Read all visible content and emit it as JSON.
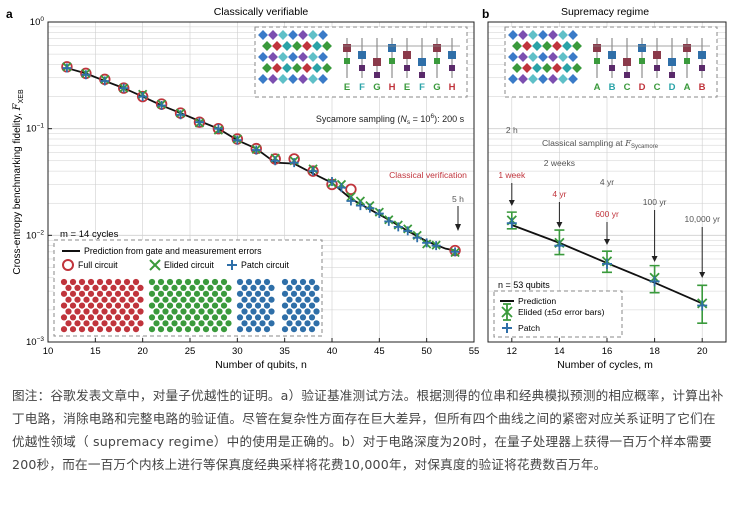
{
  "chart_data": [
    {
      "panel_label": "a",
      "type": "scatter",
      "title": "Classically verifiable",
      "xlabel": "Number of qubits, n",
      "ylabel": "Cross-entropy benchmarking fidelity, F_XEB",
      "ylabel_main": "Cross-entropy benchmarking fidelity, ",
      "ylabel_symbol": "F",
      "ylabel_sub": "XEB",
      "xlim": [
        10,
        55
      ],
      "ylim": [
        0.001,
        1
      ],
      "yscale": "log",
      "xticks": [
        10,
        15,
        20,
        25,
        30,
        35,
        40,
        45,
        50,
        55
      ],
      "yticks": [
        {
          "base": "10",
          "exp": "0",
          "value": 1
        },
        {
          "base": "10",
          "exp": "−1",
          "value": 0.1
        },
        {
          "base": "10",
          "exp": "−2",
          "value": 0.01
        },
        {
          "base": "10",
          "exp": "−3",
          "value": 0.001
        }
      ],
      "grid": true,
      "legend_location": "bottom-left",
      "cycles_label": "m = 14 cycles",
      "prediction": {
        "name": "Prediction from gate and measurement errors",
        "x": [
          12,
          14,
          16,
          18,
          20,
          22,
          24,
          26,
          28,
          30,
          32,
          34,
          36,
          38,
          40,
          42,
          44,
          46,
          48,
          50,
          52,
          53
        ],
        "y": [
          0.37,
          0.33,
          0.28,
          0.24,
          0.2,
          0.165,
          0.14,
          0.118,
          0.1,
          0.078,
          0.065,
          0.048,
          0.047,
          0.038,
          0.031,
          0.022,
          0.0175,
          0.014,
          0.011,
          0.0088,
          0.0075,
          0.0072
        ]
      },
      "series": [
        {
          "name": "Full circuit",
          "marker": "circle",
          "color": "#c0343c",
          "x": [
            12,
            14,
            16,
            18,
            20,
            22,
            24,
            26,
            28,
            30,
            32,
            34,
            36,
            38,
            40,
            42,
            53
          ],
          "y": [
            0.38,
            0.33,
            0.29,
            0.24,
            0.2,
            0.17,
            0.14,
            0.115,
            0.1,
            0.08,
            0.065,
            0.052,
            0.052,
            0.04,
            0.03,
            0.027,
            0.0072
          ]
        },
        {
          "name": "Elided circuit",
          "marker": "x",
          "color": "#3a9a3c",
          "x": [
            12,
            14,
            16,
            18,
            20,
            22,
            24,
            26,
            28,
            30,
            32,
            34,
            36,
            38,
            40,
            41,
            42,
            43,
            44,
            45,
            46,
            47,
            48,
            49,
            50,
            51,
            53
          ],
          "y": [
            0.38,
            0.33,
            0.29,
            0.24,
            0.21,
            0.17,
            0.14,
            0.113,
            0.097,
            0.08,
            0.064,
            0.053,
            0.05,
            0.042,
            0.031,
            0.03,
            0.023,
            0.021,
            0.019,
            0.0165,
            0.014,
            0.0125,
            0.0115,
            0.01,
            0.0083,
            0.0081,
            0.0069
          ]
        },
        {
          "name": "Patch circuit",
          "marker": "plus",
          "color": "#2f6fa8",
          "x": [
            12,
            14,
            16,
            18,
            20,
            22,
            24,
            26,
            28,
            30,
            32,
            34,
            36,
            38,
            40,
            41,
            42,
            43,
            44,
            45,
            46,
            47,
            48,
            49,
            50,
            51,
            53
          ],
          "y": [
            0.37,
            0.32,
            0.28,
            0.24,
            0.2,
            0.165,
            0.135,
            0.115,
            0.1,
            0.078,
            0.063,
            0.05,
            0.048,
            0.04,
            0.032,
            0.028,
            0.021,
            0.019,
            0.018,
            0.016,
            0.0135,
            0.012,
            0.011,
            0.0095,
            0.0085,
            0.008,
            0.007
          ]
        }
      ],
      "annotations": {
        "sycamore_sampling": "Sycamore sampling (Ns = 10⁶): 200 s",
        "sycamore_prefix": "Sycamore sampling (",
        "sycamore_n": "N",
        "sycamore_n_sub": "s",
        "sycamore_eq": " = 10",
        "sycamore_exp": "6",
        "sycamore_suffix": "): 200 s",
        "classical_verification": "Classical verification",
        "verification_time": "5 h",
        "inset_letters": [
          "E",
          "F",
          "G",
          "H",
          "E",
          "F",
          "G",
          "H"
        ]
      }
    },
    {
      "panel_label": "b",
      "type": "scatter",
      "title": "Supremacy regime",
      "xlabel": "Number of cycles, m",
      "xlim": [
        11,
        21
      ],
      "ylim": [
        0.001,
        1
      ],
      "yscale": "log",
      "xticks": [
        12,
        14,
        16,
        18,
        20
      ],
      "grid": true,
      "legend_location": "bottom-left",
      "qubits_label": "n = 53 qubits",
      "prediction": {
        "name": "Prediction",
        "x": [
          12,
          14,
          16,
          18,
          20
        ],
        "y": [
          0.0125,
          0.0085,
          0.0055,
          0.0036,
          0.0023
        ]
      },
      "series": [
        {
          "name": "Elided (±5σ error bars)",
          "marker": "x",
          "color": "#3a9a3c",
          "x": [
            12,
            14,
            16,
            18,
            20
          ],
          "y": [
            0.0138,
            0.0085,
            0.0057,
            0.004,
            0.0023
          ],
          "err_lo": [
            0.0115,
            0.0066,
            0.0045,
            0.0029,
            0.0015
          ],
          "err_hi": [
            0.0165,
            0.0112,
            0.0071,
            0.0052,
            0.0034
          ]
        },
        {
          "name": "Patch",
          "marker": "plus",
          "color": "#2f6fa8",
          "x": [
            12,
            14,
            16,
            18,
            20
          ],
          "y": [
            0.013,
            0.008,
            0.0054,
            0.0037,
            0.0022
          ]
        }
      ],
      "annotations": {
        "classical_sampling": "Classical sampling at F_Sycamore",
        "classical_sampling_prefix": "Classical sampling at ",
        "classical_sampling_symbol": "F",
        "classical_sampling_sub": "Sycamore",
        "times_gray": [
          "2 h",
          "2 weeks",
          "4 yr",
          "100 yr",
          "10,000 yr"
        ],
        "times_red": [
          "1 week",
          "4 yr",
          "600 yr"
        ],
        "inset_letters": [
          "A",
          "B",
          "C",
          "D",
          "C",
          "D",
          "A",
          "B"
        ]
      }
    }
  ],
  "caption": "图注：谷歌发表文章中，对量子优越性的证明。a）验证基准测试方法。根据测得的位串和经典模拟预测的相应概率，计算出补丁电路，消除电路和完整电路的验证值。尽管在复杂性方面存在巨大差异，但所有四个曲线之间的紧密对应关系证明了它们在优越性领域（ supremacy regime）中的使用是正确的。b）对于电路深度为20时，在量子处理器上获得一百万个样本需要200秒，而在一百万个内核上进行等保真度经典采样将花费10,000年，对保真度的验证将花费数百万年。",
  "colors": {
    "red": "#c0343c",
    "green": "#3a9a3c",
    "blue": "#2f6fa8",
    "grid": "#cfcfcf",
    "text_gray": "#555555"
  }
}
